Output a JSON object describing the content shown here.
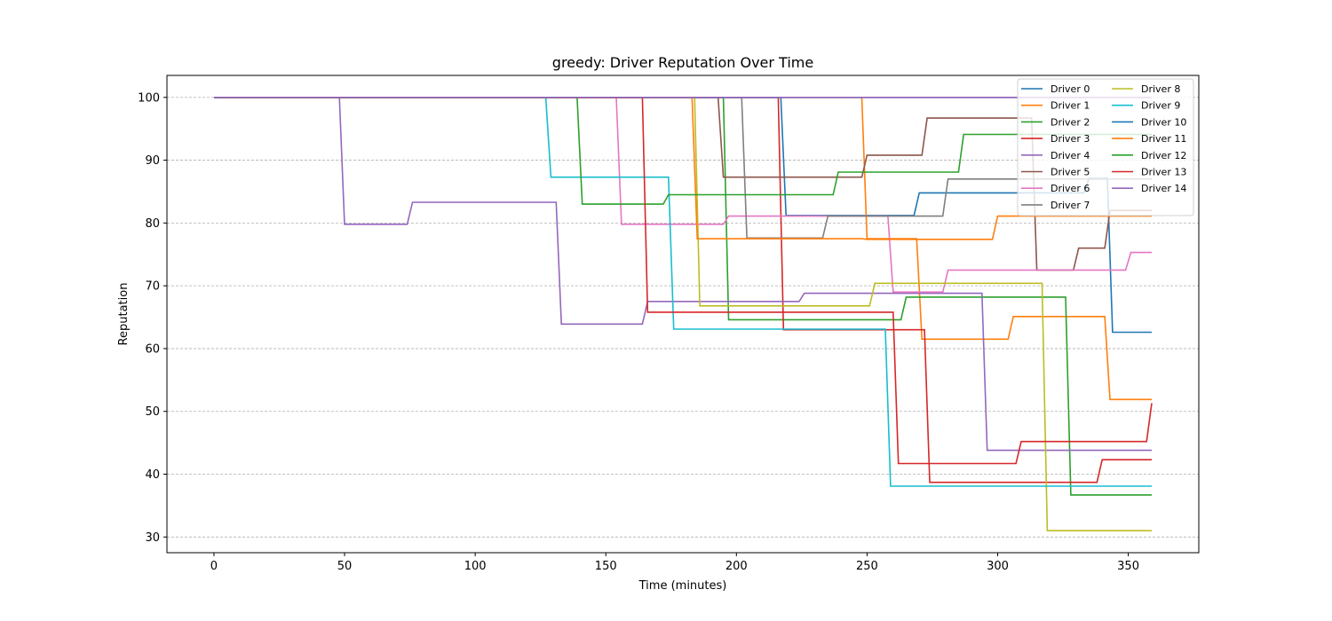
{
  "chart_data": {
    "type": "line",
    "title": "greedy: Driver Reputation Over Time",
    "xlabel": "Time (minutes)",
    "ylabel": "Reputation",
    "xlim": [
      -18,
      377
    ],
    "ylim": [
      27.5,
      103.5
    ],
    "xticks": [
      0,
      50,
      100,
      150,
      200,
      250,
      300,
      350
    ],
    "yticks": [
      30,
      40,
      50,
      60,
      70,
      80,
      90,
      100
    ],
    "grid": "y-dashed",
    "legend_position": "top-right",
    "legend_columns": 2,
    "series": [
      {
        "name": "Driver 0",
        "color": "#1f77b4",
        "points": [
          [
            0,
            100
          ],
          [
            217,
            100
          ],
          [
            219,
            81.2
          ],
          [
            268,
            81.2
          ],
          [
            270,
            84.8
          ],
          [
            333,
            84.8
          ],
          [
            335,
            87.1
          ],
          [
            342,
            87.1
          ],
          [
            344,
            62.6
          ],
          [
            359,
            62.6
          ]
        ]
      },
      {
        "name": "Driver 1",
        "color": "#ff7f0e",
        "points": [
          [
            0,
            100
          ],
          [
            248,
            100
          ],
          [
            250,
            77.5
          ],
          [
            269,
            77.5
          ],
          [
            271,
            61.5
          ],
          [
            304,
            61.5
          ],
          [
            306,
            65.1
          ],
          [
            341,
            65.1
          ],
          [
            343,
            51.9
          ],
          [
            359,
            51.9
          ]
        ]
      },
      {
        "name": "Driver 2",
        "color": "#2ca02c",
        "points": [
          [
            0,
            100
          ],
          [
            195,
            100
          ],
          [
            197,
            64.6
          ],
          [
            263,
            64.6
          ],
          [
            265,
            68.2
          ],
          [
            326,
            68.2
          ],
          [
            328,
            36.7
          ],
          [
            359,
            36.7
          ]
        ]
      },
      {
        "name": "Driver 3",
        "color": "#d62728",
        "points": [
          [
            0,
            100
          ],
          [
            216,
            100
          ],
          [
            218,
            63.0
          ],
          [
            272,
            63.0
          ],
          [
            274,
            38.7
          ],
          [
            338,
            38.7
          ],
          [
            340,
            42.3
          ],
          [
            359,
            42.3
          ]
        ]
      },
      {
        "name": "Driver 4",
        "color": "#9467bd",
        "points": [
          [
            0,
            100
          ],
          [
            48,
            100
          ],
          [
            50,
            79.8
          ],
          [
            74,
            79.8
          ],
          [
            76,
            83.3
          ],
          [
            131,
            83.3
          ],
          [
            133,
            63.9
          ],
          [
            164,
            63.9
          ],
          [
            166,
            67.5
          ],
          [
            224,
            67.5
          ],
          [
            226,
            68.8
          ],
          [
            294,
            68.8
          ],
          [
            296,
            43.8
          ],
          [
            359,
            43.8
          ]
        ]
      },
      {
        "name": "Driver 5",
        "color": "#8c564b",
        "points": [
          [
            0,
            100
          ],
          [
            193,
            100
          ],
          [
            195,
            87.3
          ],
          [
            248,
            87.3
          ],
          [
            250,
            90.8
          ],
          [
            271,
            90.8
          ],
          [
            273,
            96.7
          ],
          [
            313,
            96.7
          ],
          [
            315,
            72.5
          ],
          [
            329,
            72.5
          ],
          [
            331,
            76.0
          ],
          [
            341,
            76.0
          ],
          [
            343,
            82.0
          ],
          [
            359,
            82.0
          ]
        ]
      },
      {
        "name": "Driver 6",
        "color": "#e377c2",
        "points": [
          [
            0,
            100
          ],
          [
            154,
            100
          ],
          [
            156,
            79.8
          ],
          [
            195,
            79.8
          ],
          [
            197,
            81.1
          ],
          [
            258,
            81.1
          ],
          [
            260,
            69.0
          ],
          [
            279,
            69.0
          ],
          [
            281,
            72.5
          ],
          [
            349,
            72.5
          ],
          [
            351,
            75.3
          ],
          [
            359,
            75.3
          ]
        ]
      },
      {
        "name": "Driver 7",
        "color": "#7f7f7f",
        "points": [
          [
            0,
            100
          ],
          [
            202,
            100
          ],
          [
            204,
            77.6
          ],
          [
            233,
            77.6
          ],
          [
            235,
            81.1
          ],
          [
            279,
            81.1
          ],
          [
            281,
            87.0
          ],
          [
            359,
            87.0
          ]
        ]
      },
      {
        "name": "Driver 8",
        "color": "#bcbd22",
        "points": [
          [
            0,
            100
          ],
          [
            184,
            100
          ],
          [
            186,
            66.8
          ],
          [
            251,
            66.8
          ],
          [
            253,
            70.4
          ],
          [
            317,
            70.4
          ],
          [
            319,
            31.0
          ],
          [
            359,
            31.0
          ]
        ]
      },
      {
        "name": "Driver 9",
        "color": "#17becf",
        "points": [
          [
            0,
            100
          ],
          [
            127,
            100
          ],
          [
            129,
            87.3
          ],
          [
            174,
            87.3
          ],
          [
            176,
            63.1
          ],
          [
            257,
            63.1
          ],
          [
            259,
            38.1
          ],
          [
            359,
            38.1
          ]
        ]
      },
      {
        "name": "Driver 10",
        "color": "#1f77b4",
        "points": [
          [
            0,
            100
          ],
          [
            359,
            100
          ]
        ]
      },
      {
        "name": "Driver 11",
        "color": "#ff7f0e",
        "points": [
          [
            0,
            100
          ],
          [
            183,
            100
          ],
          [
            185,
            77.5
          ],
          [
            248,
            77.5
          ],
          [
            250,
            77.4
          ],
          [
            298,
            77.4
          ],
          [
            300,
            81.1
          ],
          [
            359,
            81.1
          ]
        ]
      },
      {
        "name": "Driver 12",
        "color": "#2ca02c",
        "points": [
          [
            0,
            100
          ],
          [
            139,
            100
          ],
          [
            141,
            83.0
          ],
          [
            172,
            83.0
          ],
          [
            174,
            84.5
          ],
          [
            237,
            84.5
          ],
          [
            239,
            88.1
          ],
          [
            285,
            88.1
          ],
          [
            287,
            94.1
          ],
          [
            359,
            94.1
          ]
        ]
      },
      {
        "name": "Driver 13",
        "color": "#d62728",
        "points": [
          [
            0,
            100
          ],
          [
            164,
            100
          ],
          [
            166,
            65.8
          ],
          [
            260,
            65.8
          ],
          [
            262,
            41.7
          ],
          [
            307,
            41.7
          ],
          [
            309,
            45.2
          ],
          [
            357,
            45.2
          ],
          [
            359,
            51.3
          ]
        ]
      },
      {
        "name": "Driver 14",
        "color": "#9467bd",
        "points": [
          [
            0,
            100
          ],
          [
            359,
            100
          ]
        ]
      }
    ]
  }
}
